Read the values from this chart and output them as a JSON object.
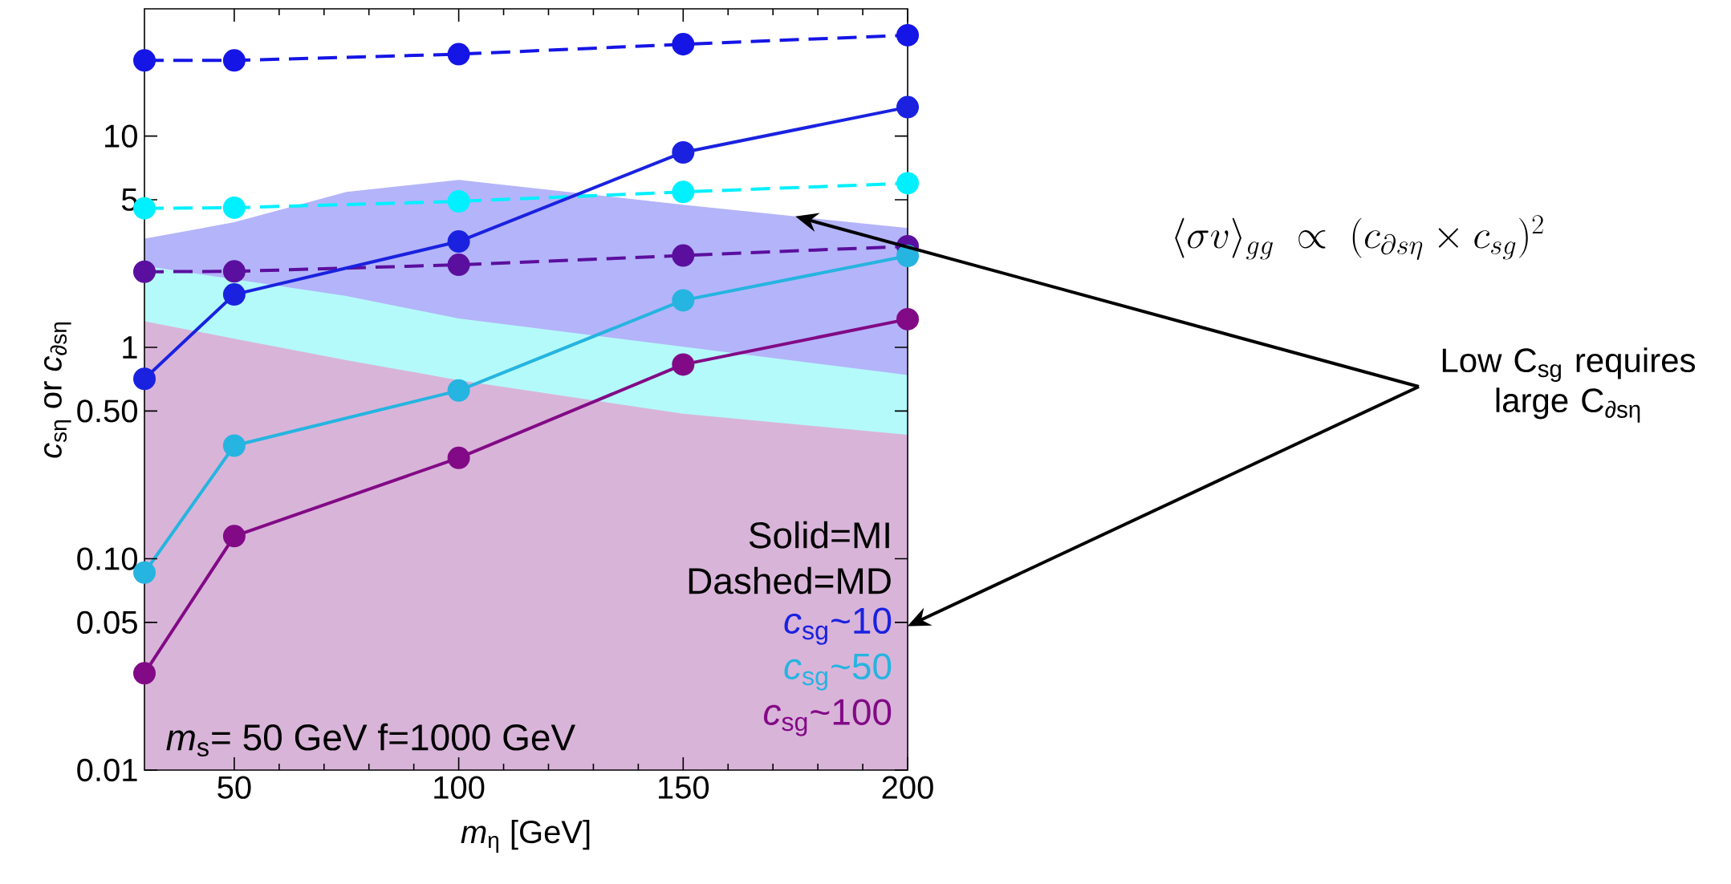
{
  "chart_data": {
    "type": "line",
    "xlabel": "*m*$_{η}$ [GeV]",
    "ylabel": "*c*$_{sη}$ or *c*$_{∂sη}$",
    "x": [
      30,
      50,
      100,
      150,
      200
    ],
    "xlim": [
      30,
      200
    ],
    "xticks": [
      50,
      100,
      150,
      200
    ],
    "ylim": [
      0.01,
      40
    ],
    "log": "y",
    "yticks": [
      0.01,
      0.05,
      {
        "value": 0.1,
        "label": "0.10"
      },
      {
        "value": 0.5,
        "label": "0.50"
      },
      1,
      5,
      10
    ],
    "marker": "circle",
    "legend": "bottom right",
    "grid": false,
    "series": [
      {
        "type": "area",
        "marker": "none",
        "color": "#b4b4fa",
        "x": [
          30,
          50,
          75,
          100,
          150,
          200
        ],
        "values": [
          3.27,
          3.91,
          5.44,
          6.21,
          4.73,
          3.67
        ]
      },
      {
        "type": "area",
        "marker": "none",
        "color": "#b4fafa",
        "x": [
          30,
          50,
          75,
          100,
          150,
          200
        ],
        "values": [
          2.43,
          null,
          1.75,
          1.37,
          null,
          0.74
        ]
      },
      {
        "type": "area",
        "marker": "none",
        "color": "#d9b4d9",
        "x": [
          30,
          50,
          75,
          100,
          150,
          200
        ],
        "values": [
          1.33,
          1.1,
          0.87,
          0.7,
          0.485,
          0.386
        ]
      },
      {
        "color": "#1515e6",
        "line_style": "dashed",
        "values": [
          22.8,
          22.8,
          24.4,
          27.2,
          30
        ]
      },
      {
        "color": "#00f0ff",
        "line_style": "dashed",
        "values": [
          4.55,
          4.58,
          4.91,
          5.44,
          5.98
        ]
      },
      {
        "color": "#5b0f9e",
        "line_style": "dashed",
        "values": [
          2.28,
          2.29,
          2.46,
          2.72,
          3.01
        ]
      },
      {
        "color": "#1a22e0",
        "line_style": "solid",
        "name": "*c*$_{sg}$~10",
        "values": [
          0.71,
          1.78,
          3.17,
          8.37,
          13.7
        ]
      },
      {
        "color": "#26b4e0",
        "line_style": "solid",
        "name": "*c*$_{sg}$~50",
        "values": [
          0.086,
          0.343,
          0.625,
          1.67,
          2.71
        ]
      },
      {
        "color": "#820a86",
        "line_style": "solid",
        "name": "*c*$_{sg}$~100",
        "values": [
          0.0287,
          0.128,
          0.3,
          0.83,
          1.36
        ]
      }
    ],
    "annotations": [
      "Solid=MI",
      "Dashed=MD",
      "*m*$_{s}$= 50 GeV  f=1000 GeV",
      "\\langle\\sigma v\\rangle_{gg}\\ \\propto\\ (c_{\\partial s\\eta}\\times c_{sg})^2",
      "Low C$_{sg}$ requires large C$_{∂sη}$"
    ]
  }
}
